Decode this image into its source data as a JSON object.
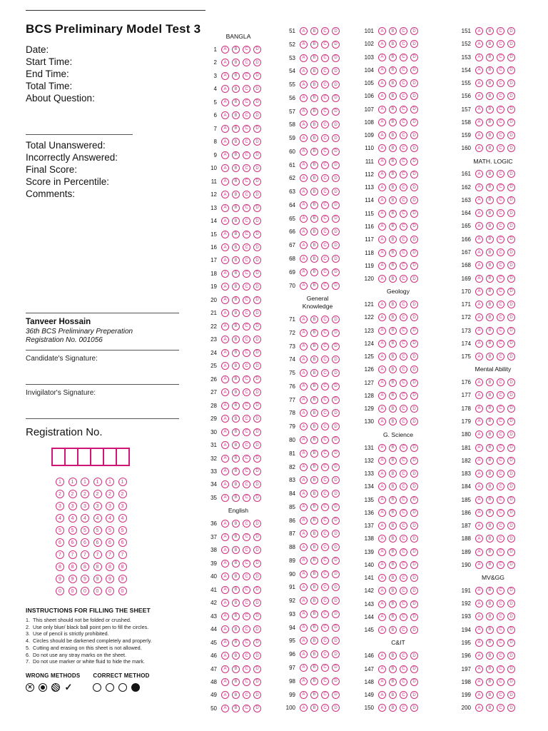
{
  "colors": {
    "accent": "#d0327e",
    "box_accent": "#cf1578",
    "ink": "#111111"
  },
  "header": {
    "title": "BCS Preliminary Model Test 3"
  },
  "meta_fields": [
    "Date:",
    "Start Time:",
    "End Time:",
    "Total Time:",
    "About Question:"
  ],
  "result_fields": [
    "Total Unanswered:",
    "Incorrectly Answered:",
    "Final Score:",
    "Score in Percentile:",
    "Comments:"
  ],
  "candidate": {
    "name": "Tanveer Hossain",
    "program": "36th BCS Preliminary Preperation",
    "registration_line": "Registration No. 001056"
  },
  "signatures": {
    "candidate_label": "Candidate's Signature:",
    "invigilator_label": "Invigilator's Signature:"
  },
  "registration": {
    "label": "Registration No.",
    "box_count": 6,
    "digit_rows": [
      "1",
      "2",
      "3",
      "4",
      "5",
      "6",
      "7",
      "8",
      "9",
      "0"
    ],
    "digit_columns": 6
  },
  "instructions": {
    "title": "INSTRUCTIONS FOR FILLING THE SHEET",
    "items": [
      "This sheet should not be folded or crushed.",
      "Use only blue/ black ball point pen to fill the circles.",
      "Use of pencil is strictly prohibited.",
      "Circles should be darkened completely and properly.",
      "Cutting and erasing on this sheet is not allowed.",
      "Do not use any stray marks on the sheet.",
      "Do not use marker or white fluid to hide the mark."
    ]
  },
  "methods": {
    "wrong_label": "WRONG METHODS",
    "correct_label": "CORRECT METHOD",
    "wrong_icons": [
      "circle-cross",
      "circle-dot",
      "circle-scribble",
      "check-mark"
    ],
    "correct_icons": [
      "empty",
      "empty",
      "empty",
      "filled"
    ]
  },
  "options": [
    "A",
    "B",
    "C",
    "D"
  ],
  "answer_sheet": {
    "columns": [
      {
        "segments": [
          {
            "header": "BANGLA",
            "from": 1,
            "to": 35
          },
          {
            "header": "English",
            "from": 36,
            "to": 50
          }
        ]
      },
      {
        "segments": [
          {
            "header": null,
            "from": 51,
            "to": 70
          },
          {
            "header": "General\nKnowledge",
            "from": 71,
            "to": 100
          }
        ]
      },
      {
        "segments": [
          {
            "header": null,
            "from": 101,
            "to": 120
          },
          {
            "header": "Geology",
            "from": 121,
            "to": 130
          },
          {
            "header": "G. Science",
            "from": 131,
            "to": 145
          },
          {
            "header": "C&IT",
            "from": 146,
            "to": 150
          }
        ]
      },
      {
        "segments": [
          {
            "header": null,
            "from": 151,
            "to": 160
          },
          {
            "header": "MATH. LOGIC",
            "from": 161,
            "to": 175
          },
          {
            "header": "Mental Ability",
            "from": 176,
            "to": 190
          },
          {
            "header": "MV&GG",
            "from": 191,
            "to": 200
          }
        ]
      }
    ]
  }
}
